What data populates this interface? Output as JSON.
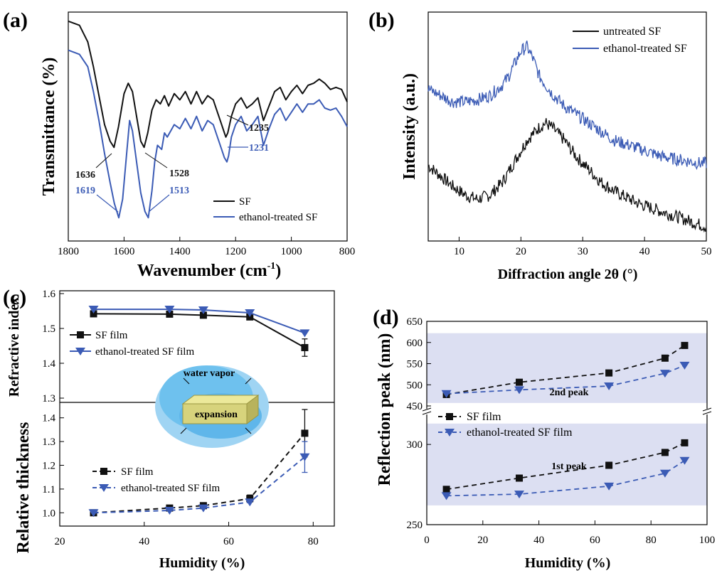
{
  "colors": {
    "black": "#111111",
    "blue": "#3b5bb5",
    "band": "#dcdff2",
    "cloud": "#5fb6ea",
    "block": "#d7d37c"
  },
  "chart_data": [
    {
      "panel": "(a)",
      "type": "line",
      "xlabel": "Wavenumber (cm",
      "xlabel_sup": "-1",
      "xlabel_close": ")",
      "ylabel": "Transmittance (%)",
      "xlim": [
        1800,
        800
      ],
      "xticks": [
        "1800",
        "1600",
        "1400",
        "1200",
        "1000",
        "800"
      ],
      "series": [
        {
          "name": "SF",
          "color": "#111111",
          "x": [
            1800,
            1760,
            1730,
            1710,
            1690,
            1670,
            1650,
            1636,
            1620,
            1600,
            1585,
            1570,
            1555,
            1540,
            1528,
            1515,
            1500,
            1485,
            1470,
            1455,
            1440,
            1420,
            1400,
            1380,
            1360,
            1340,
            1320,
            1300,
            1280,
            1265,
            1250,
            1240,
            1235,
            1228,
            1215,
            1200,
            1180,
            1160,
            1140,
            1120,
            1100,
            1080,
            1060,
            1040,
            1020,
            1000,
            980,
            960,
            940,
            920,
            900,
            880,
            860,
            840,
            820,
            800
          ],
          "y": [
            98,
            96,
            88,
            76,
            62,
            48,
            40,
            37,
            47,
            63,
            68,
            64,
            52,
            40,
            37,
            44,
            55,
            60,
            58,
            62,
            57,
            63,
            60,
            64,
            58,
            64,
            58,
            62,
            60,
            54,
            48,
            44,
            42,
            44,
            52,
            58,
            61,
            56,
            58,
            61,
            50,
            57,
            64,
            66,
            60,
            64,
            67,
            63,
            67,
            68,
            70,
            68,
            65,
            66,
            65,
            59
          ]
        },
        {
          "name": "ethanol-treated SF",
          "color": "#3b5bb5",
          "x": [
            1800,
            1760,
            1730,
            1710,
            1690,
            1670,
            1650,
            1635,
            1619,
            1605,
            1590,
            1580,
            1570,
            1555,
            1540,
            1525,
            1513,
            1500,
            1490,
            1480,
            1465,
            1455,
            1445,
            1420,
            1400,
            1380,
            1360,
            1340,
            1320,
            1300,
            1280,
            1265,
            1250,
            1240,
            1231,
            1225,
            1215,
            1200,
            1180,
            1160,
            1140,
            1120,
            1100,
            1080,
            1060,
            1040,
            1020,
            1000,
            980,
            960,
            940,
            920,
            900,
            880,
            860,
            840,
            820,
            800
          ],
          "y": [
            84,
            82,
            76,
            64,
            50,
            34,
            20,
            10,
            3,
            12,
            35,
            50,
            45,
            30,
            15,
            6,
            3,
            16,
            30,
            38,
            36,
            44,
            42,
            48,
            46,
            51,
            46,
            52,
            45,
            50,
            48,
            42,
            36,
            32,
            30,
            33,
            42,
            48,
            52,
            45,
            48,
            52,
            38,
            46,
            53,
            56,
            50,
            54,
            58,
            54,
            58,
            58,
            60,
            56,
            55,
            56,
            52,
            47
          ]
        }
      ],
      "annotations": [
        {
          "text": "1636",
          "color": "#111111"
        },
        {
          "text": "1528",
          "color": "#111111"
        },
        {
          "text": "1235",
          "color": "#111111"
        },
        {
          "text": "1619",
          "color": "#3b5bb5"
        },
        {
          "text": "1513",
          "color": "#3b5bb5"
        },
        {
          "text": "1231",
          "color": "#3b5bb5"
        }
      ],
      "legend_position": "bottom-right"
    },
    {
      "panel": "(b)",
      "type": "line",
      "xlabel": "Diffraction angle 2θ (°)",
      "ylabel": "Intensity (a.u.)",
      "xlim": [
        5,
        50
      ],
      "xticks": [
        "10",
        "20",
        "30",
        "40",
        "50"
      ],
      "series": [
        {
          "name": "untreated SF",
          "color": "#111111",
          "x": [
            5,
            7,
            9,
            11,
            13,
            15,
            17,
            19,
            21,
            23,
            24,
            25,
            27,
            29,
            31,
            33,
            35,
            37,
            39,
            41,
            43,
            45,
            47,
            49,
            50
          ],
          "y": [
            30,
            25,
            20,
            16,
            14,
            16,
            22,
            32,
            42,
            48,
            50,
            48,
            42,
            34,
            28,
            22,
            18,
            15,
            12,
            10,
            8,
            6,
            4,
            2,
            1
          ]
        },
        {
          "name": "ethanol-treated SF",
          "color": "#3b5bb5",
          "x": [
            5,
            7,
            9,
            11,
            13,
            15,
            17,
            18,
            19,
            20,
            21,
            22,
            23,
            25,
            27,
            29,
            31,
            33,
            35,
            37,
            39,
            41,
            43,
            45,
            47,
            49,
            50
          ],
          "y": [
            66,
            63,
            60,
            60,
            61,
            63,
            68,
            72,
            78,
            84,
            86,
            80,
            72,
            64,
            58,
            54,
            50,
            46,
            42,
            40,
            38,
            36,
            34,
            33,
            32,
            31,
            31
          ]
        }
      ],
      "legend_position": "top-right"
    },
    {
      "panel": "(c)",
      "type": "line",
      "xlabel": "Humidity (%)",
      "xlim": [
        20,
        85
      ],
      "xticks": [
        "20",
        "40",
        "60",
        "80"
      ],
      "top": {
        "ylabel": "Refractive index",
        "ylim": [
          1.3,
          1.6
        ],
        "yticks": [
          "1.3",
          "1.4",
          "1.5",
          "1.6"
        ],
        "series": [
          {
            "name": "SF film",
            "color": "#111111",
            "marker": "square",
            "x": [
              28,
              46,
              54,
              65,
              78
            ],
            "y": [
              1.542,
              1.541,
              1.538,
              1.533,
              1.445
            ],
            "err": [
              0,
              0,
              0,
              0,
              0.025
            ]
          },
          {
            "name": "ethanol-treated SF film",
            "color": "#3b5bb5",
            "marker": "triangle-down",
            "x": [
              28,
              46,
              54,
              65,
              78
            ],
            "y": [
              1.555,
              1.555,
              1.553,
              1.545,
              1.487
            ],
            "err": [
              0,
              0,
              0,
              0,
              0
            ]
          }
        ]
      },
      "bottom": {
        "ylabel": "Relative thickness",
        "ylim": [
          0.95,
          1.45
        ],
        "yticks": [
          "1.0",
          "1.1",
          "1.2",
          "1.3",
          "1.4"
        ],
        "series": [
          {
            "name": "SF film",
            "color": "#111111",
            "marker": "square",
            "dashed": true,
            "x": [
              28,
              46,
              54,
              65,
              78
            ],
            "y": [
              1.0,
              1.02,
              1.03,
              1.06,
              1.335
            ],
            "err": [
              0,
              0,
              0,
              0.015,
              0.1
            ]
          },
          {
            "name": "ethanol-treated SF film",
            "color": "#3b5bb5",
            "marker": "triangle-down",
            "dashed": true,
            "x": [
              28,
              46,
              54,
              65,
              78
            ],
            "y": [
              1.0,
              1.01,
              1.02,
              1.045,
              1.235
            ],
            "err": [
              0,
              0,
              0,
              0,
              0.065
            ]
          }
        ]
      },
      "inset": {
        "top_text": "water vapor",
        "center_text": "expansion"
      }
    },
    {
      "panel": "(d)",
      "type": "line",
      "xlabel": "Humidity (%)",
      "ylabel": "Reflection peak (nm)",
      "xlim": [
        0,
        100
      ],
      "xticks": [
        "0",
        "20",
        "40",
        "60",
        "80",
        "100"
      ],
      "upper": {
        "ylim": [
          450,
          650
        ],
        "yticks": [
          "450",
          "500",
          "550",
          "600",
          "650"
        ],
        "band_label": "2nd peak",
        "band_range": [
          457,
          622
        ],
        "series": [
          {
            "name": "SF film",
            "color": "#111111",
            "marker": "square",
            "x": [
              7,
              33,
              65,
              85,
              92
            ],
            "y": [
              477,
              506,
              528,
              563,
              593
            ]
          },
          {
            "name": "ethanol-treated SF film",
            "color": "#3b5bb5",
            "marker": "triangle-down",
            "x": [
              7,
              33,
              65,
              85,
              92
            ],
            "y": [
              479,
              488,
              497,
              527,
              546
            ]
          }
        ]
      },
      "lower": {
        "ylim": [
          250,
          320
        ],
        "yticks": [
          "250",
          "300"
        ],
        "band_label": "1st peak",
        "band_range": [
          262,
          313
        ],
        "series": [
          {
            "name": "SF film",
            "color": "#111111",
            "marker": "square",
            "x": [
              7,
              33,
              65,
              85,
              92
            ],
            "y": [
              272,
              279,
              287,
              295,
              301
            ]
          },
          {
            "name": "ethanol-treated SF film",
            "color": "#3b5bb5",
            "marker": "triangle-down",
            "x": [
              7,
              33,
              65,
              85,
              92
            ],
            "y": [
              268,
              269,
              274,
              282,
              290
            ]
          }
        ]
      }
    }
  ]
}
